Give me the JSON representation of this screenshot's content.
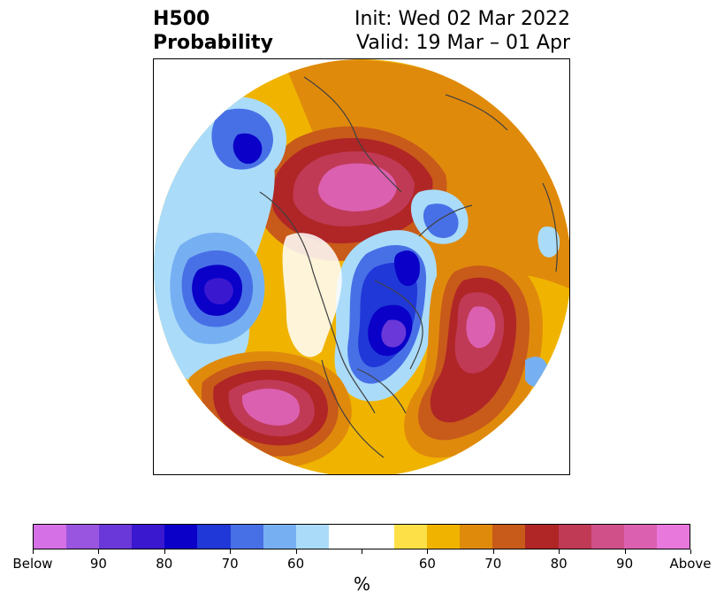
{
  "title": {
    "left_line1": "H500",
    "left_line2": "Probability",
    "right_line1": "Init: Wed 02 Mar 2022",
    "right_line2": "Valid: 19 Mar – 01 Apr"
  },
  "colorbar": {
    "unit_label": "%",
    "colors": [
      "#d670e6",
      "#9a55e0",
      "#6a38d8",
      "#3a18d0",
      "#0a00c8",
      "#2038d8",
      "#4870e6",
      "#76b0f2",
      "#aadcfa",
      "#ffffff",
      "#ffffff",
      "#fde047",
      "#f0b400",
      "#e08a0c",
      "#c85a1a",
      "#b02626",
      "#c03a56",
      "#d0508a",
      "#dc60b0",
      "#e878dc"
    ],
    "tick_labels": [
      "Below",
      "90",
      "80",
      "70",
      "60",
      "",
      "60",
      "70",
      "80",
      "90",
      "Above"
    ]
  },
  "colors": {
    "below_strong": "#0a00c8",
    "above_strong": "#b02626",
    "coastline": "#404040"
  }
}
